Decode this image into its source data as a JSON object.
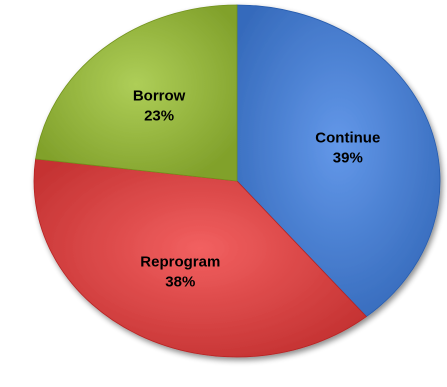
{
  "chart_data": {
    "type": "pie",
    "categories": [
      "Continue",
      "Reprogram",
      "Borrow"
    ],
    "values": [
      39,
      38,
      23
    ],
    "value_labels": [
      "39%",
      "38%",
      "23%"
    ],
    "colors": [
      "#4a7fd0",
      "#d94747",
      "#95b53f"
    ],
    "start_angle_deg": 0,
    "direction": "clockwise",
    "legend": "none",
    "data_labels": "inside"
  }
}
